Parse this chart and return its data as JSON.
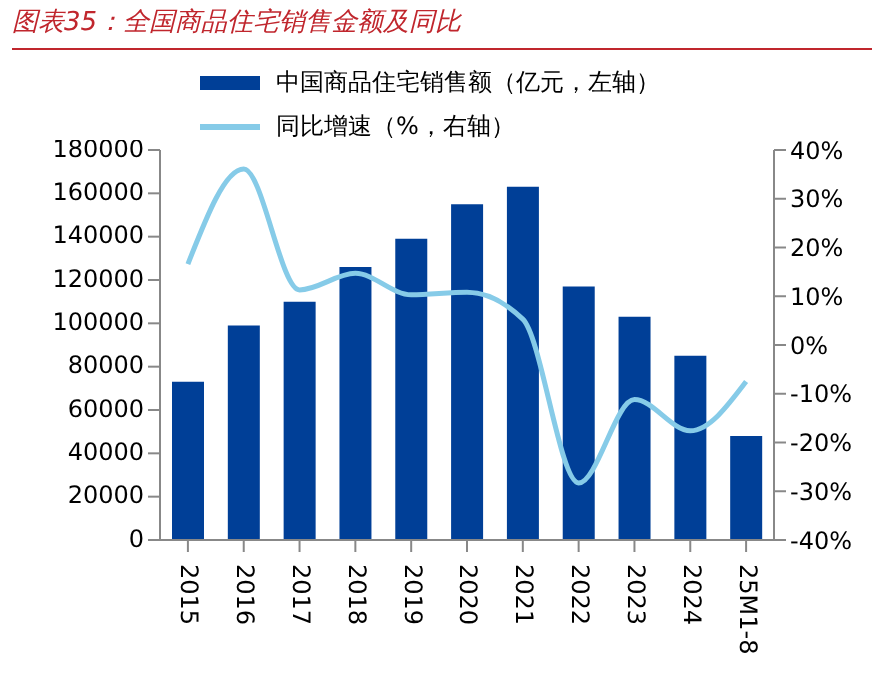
{
  "chart_data": {
    "type": "bar",
    "title": "图表35：全国商品住宅销售金额及同比",
    "categories": [
      "2015",
      "2016",
      "2017",
      "2018",
      "2019",
      "2020",
      "2021",
      "2022",
      "2023",
      "2024",
      "25M1-8"
    ],
    "series": [
      {
        "name": "中国商品住宅销售额（亿元，左轴）",
        "color": "#003f97",
        "values": [
          73000,
          99000,
          110000,
          126000,
          139000,
          155000,
          163000,
          117000,
          103000,
          85000,
          48000
        ]
      },
      {
        "name": "同比增速（%，右轴）",
        "type": "line",
        "axis": "y2",
        "color": "#86cbe8",
        "values": [
          16.6,
          36.1,
          11.3,
          14.7,
          10.3,
          10.8,
          5.3,
          -28.3,
          -11.2,
          -17.6,
          -7.5
        ]
      }
    ],
    "ylim": [
      0,
      180000
    ],
    "yticks": [
      0,
      20000,
      40000,
      60000,
      80000,
      100000,
      120000,
      140000,
      160000,
      180000
    ],
    "y2lim": [
      -40,
      40
    ],
    "y2ticks": [
      {
        "value": -40,
        "label": "-40%"
      },
      {
        "value": -30,
        "label": "-30%"
      },
      {
        "value": -20,
        "label": "-20%"
      },
      {
        "value": -10,
        "label": "-10%"
      },
      {
        "value": 0,
        "label": "0%"
      },
      {
        "value": 10,
        "label": "10%"
      },
      {
        "value": 20,
        "label": "20%"
      },
      {
        "value": 30,
        "label": "30%"
      },
      {
        "value": 40,
        "label": "40%"
      }
    ],
    "legend": "top",
    "grid": false,
    "marker": "none"
  }
}
